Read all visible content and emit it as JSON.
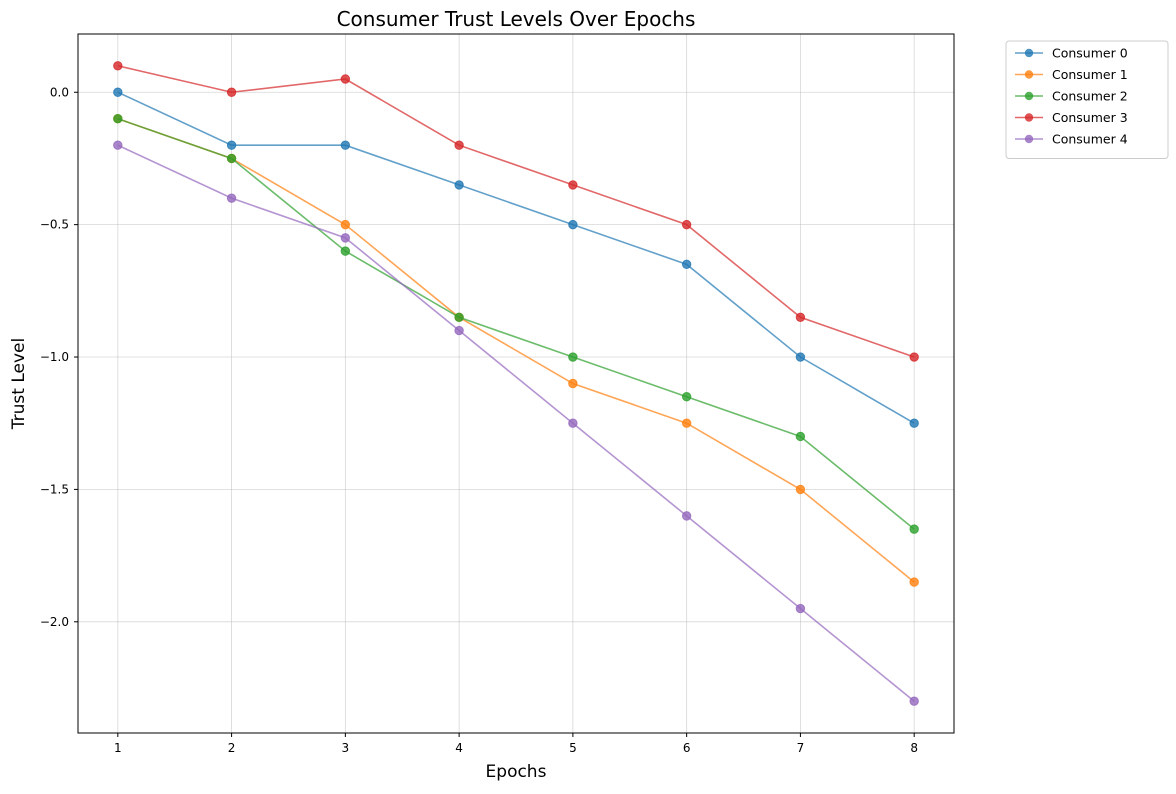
{
  "chart_data": {
    "type": "line",
    "title": "Consumer Trust Levels Over Epochs",
    "xlabel": "Epochs",
    "ylabel": "Trust Level",
    "x": [
      1,
      2,
      3,
      4,
      5,
      6,
      7,
      8
    ],
    "xlim": [
      0.65,
      8.35
    ],
    "ylim": [
      -2.42,
      0.22
    ],
    "xticks": [
      "1",
      "2",
      "3",
      "4",
      "5",
      "6",
      "7",
      "8"
    ],
    "yticks": [
      0.0,
      -0.5,
      -1.0,
      -1.5,
      -2.0
    ],
    "ytick_labels": [
      "0.0",
      "−0.5",
      "−1.0",
      "−1.5",
      "−2.0"
    ],
    "grid": true,
    "legend_position": "outside top-right",
    "series": [
      {
        "name": "Consumer 0",
        "color": "#1f77b4",
        "values": [
          0.0,
          -0.2,
          -0.2,
          -0.35,
          -0.5,
          -0.65,
          -1.0,
          -1.25
        ]
      },
      {
        "name": "Consumer 1",
        "color": "#ff7f0e",
        "values": [
          -0.1,
          -0.25,
          -0.5,
          -0.85,
          -1.1,
          -1.25,
          -1.5,
          -1.85
        ]
      },
      {
        "name": "Consumer 2",
        "color": "#2ca02c",
        "values": [
          -0.1,
          -0.25,
          -0.6,
          -0.85,
          -1.0,
          -1.15,
          -1.3,
          -1.65
        ]
      },
      {
        "name": "Consumer 3",
        "color": "#d62728",
        "values": [
          0.1,
          0.0,
          0.05,
          -0.2,
          -0.35,
          -0.5,
          -0.85,
          -1.0
        ]
      },
      {
        "name": "Consumer 4",
        "color": "#9467bd",
        "values": [
          -0.2,
          -0.4,
          -0.55,
          -0.9,
          -1.25,
          -1.6,
          -1.95,
          -2.3
        ]
      }
    ]
  }
}
